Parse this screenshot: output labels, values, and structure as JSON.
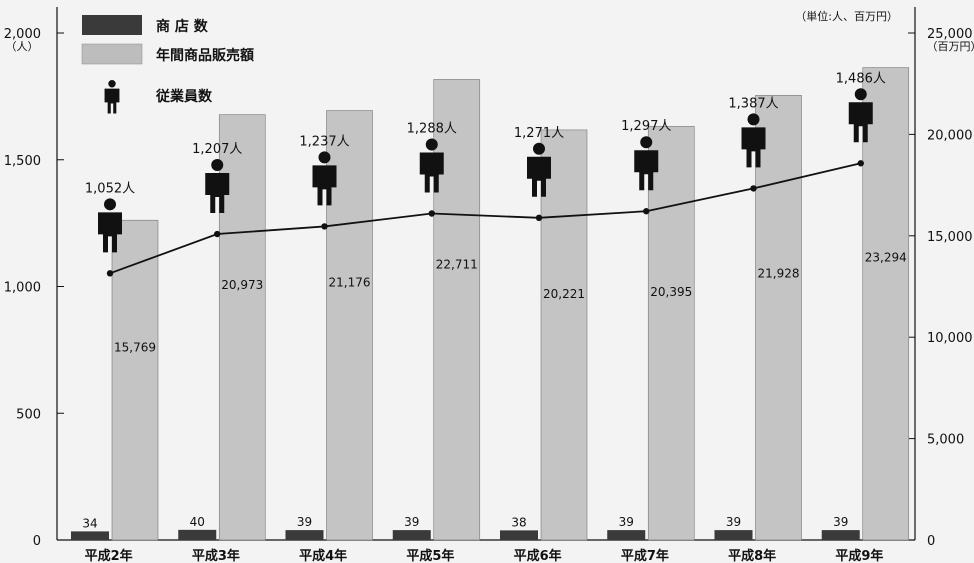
{
  "chart_data": {
    "type": "bar",
    "units_note": "（単位:人、百万円）",
    "categories": [
      "平成2年",
      "平成3年",
      "平成4年",
      "平成5年",
      "平成6年",
      "平成7年",
      "平成8年",
      "平成9年"
    ],
    "left_axis": {
      "unit": "（人）",
      "ticks": [
        "0",
        "500",
        "1,000",
        "1,500",
        "2,000"
      ],
      "ylim": [
        0,
        2000
      ]
    },
    "right_axis": {
      "unit": "（百万円）",
      "ticks": [
        "0",
        "5,000",
        "10,000",
        "15,000",
        "20,000",
        "25,000"
      ],
      "ylim": [
        0,
        25000
      ]
    },
    "legend": [
      {
        "label": "商 店 数",
        "color": "#3a3a3a"
      },
      {
        "label": "年間商品販売額",
        "color": "#bdbdbd"
      },
      {
        "label": "従業員数",
        "color": "#111111"
      }
    ],
    "series": [
      {
        "name": "商 店 数",
        "kind": "bar",
        "axis": "left",
        "values": [
          34,
          40,
          39,
          39,
          38,
          39,
          39,
          39
        ],
        "labels": [
          "34",
          "40",
          "39",
          "39",
          "38",
          "39",
          "39",
          "39"
        ]
      },
      {
        "name": "年間商品販売額",
        "kind": "bar",
        "axis": "right",
        "values": [
          15769,
          20973,
          21176,
          22711,
          20221,
          20395,
          21928,
          23294
        ],
        "labels": [
          "15,769",
          "20,973",
          "21,176",
          "22,711",
          "20,221",
          "20,395",
          "21,928",
          "23,294"
        ]
      },
      {
        "name": "従業員数",
        "kind": "line",
        "axis": "left",
        "values": [
          1052,
          1207,
          1237,
          1288,
          1271,
          1297,
          1387,
          1486
        ],
        "labels": [
          "1,052人",
          "1,207人",
          "1,237人",
          "1,288人",
          "1,271人",
          "1,297人",
          "1,387人",
          "1,486人"
        ]
      }
    ],
    "grid": false,
    "legend_position": "top-left"
  }
}
